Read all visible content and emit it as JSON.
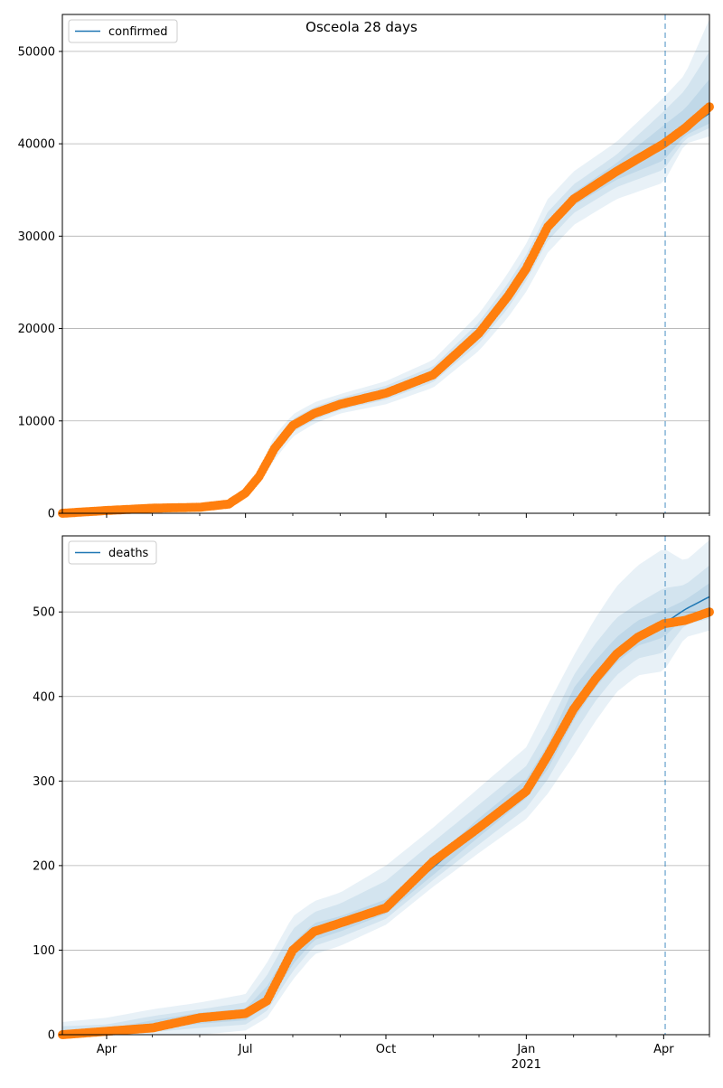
{
  "title": "Osceola 28 days",
  "colors": {
    "line": "#1f77b4",
    "points": "#ff7f0e",
    "band": "#1f77b4",
    "grid": "#b0b0b0",
    "vline": "#1f77b4"
  },
  "x_axis": {
    "major_ticks": [
      {
        "date": "2020-04-01",
        "label": "Apr",
        "sublabel": ""
      },
      {
        "date": "2020-07-01",
        "label": "Jul",
        "sublabel": ""
      },
      {
        "date": "2020-10-01",
        "label": "Oct",
        "sublabel": ""
      },
      {
        "date": "2021-01-01",
        "label": "Jan",
        "sublabel": "2021"
      },
      {
        "date": "2021-04-01",
        "label": "Apr",
        "sublabel": ""
      }
    ],
    "minor_ticks": [
      "2020-05-01",
      "2020-06-01",
      "2020-08-01",
      "2020-09-01",
      "2020-11-01",
      "2020-12-01",
      "2021-02-01",
      "2021-03-01",
      "2021-05-01"
    ],
    "range": [
      "2020-03-03",
      "2021-05-01"
    ]
  },
  "forecast_start": "2021-04-02",
  "chart_data": [
    {
      "type": "line",
      "legend": "confirmed",
      "legend_position": "upper left",
      "grid": "horizontal",
      "ylim": [
        0,
        54000
      ],
      "yticks": [
        0,
        10000,
        20000,
        30000,
        40000,
        50000
      ],
      "x": [
        "2020-03-03",
        "2020-04-01",
        "2020-05-01",
        "2020-06-01",
        "2020-06-20",
        "2020-07-01",
        "2020-07-10",
        "2020-07-20",
        "2020-08-01",
        "2020-08-15",
        "2020-09-01",
        "2020-10-01",
        "2020-11-01",
        "2020-12-01",
        "2020-12-20",
        "2021-01-01",
        "2021-01-15",
        "2021-02-01",
        "2021-03-01",
        "2021-04-01",
        "2021-04-15",
        "2021-05-01"
      ],
      "series": [
        {
          "name": "confirmed",
          "kind": "line",
          "values": [
            0,
            300,
            550,
            650,
            1000,
            2200,
            4000,
            7000,
            9500,
            10800,
            11800,
            13000,
            15000,
            19500,
            23500,
            26500,
            31000,
            34000,
            37000,
            40000,
            41500,
            43300
          ]
        },
        {
          "name": "observed",
          "kind": "points",
          "values": [
            0,
            300,
            550,
            650,
            1000,
            2200,
            4000,
            7000,
            9500,
            10800,
            11800,
            13000,
            15000,
            19500,
            23500,
            26500,
            31000,
            34000,
            37000,
            40000,
            41700,
            44000
          ]
        }
      ],
      "bands": [
        {
          "lower": [
            0,
            200,
            450,
            550,
            800,
            1700,
            3200,
            5800,
            8300,
            9700,
            10800,
            11800,
            13600,
            17600,
            21200,
            24000,
            28200,
            31200,
            34000,
            35800,
            40000,
            40800
          ],
          "upper": [
            0,
            400,
            650,
            750,
            1200,
            2800,
            4800,
            8400,
            10700,
            12000,
            12900,
            14300,
            16600,
            21600,
            26000,
            29200,
            34000,
            37000,
            40200,
            45000,
            47500,
            53500
          ]
        },
        {
          "lower": [
            0,
            240,
            480,
            580,
            870,
            1900,
            3500,
            6300,
            8800,
            10100,
            11200,
            12300,
            14200,
            18400,
            22200,
            25200,
            29500,
            32500,
            35300,
            37200,
            40500,
            41700
          ],
          "upper": [
            0,
            360,
            620,
            720,
            1130,
            2500,
            4500,
            7700,
            10200,
            11500,
            12500,
            13800,
            15900,
            20700,
            24900,
            28000,
            32600,
            35600,
            38800,
            43500,
            45800,
            50000
          ]
        },
        {
          "lower": [
            0,
            270,
            510,
            610,
            930,
            2050,
            3750,
            6650,
            9150,
            10450,
            11500,
            12650,
            14600,
            18950,
            22850,
            25900,
            30300,
            33300,
            36100,
            38200,
            40900,
            42200
          ],
          "upper": [
            0,
            330,
            590,
            690,
            1070,
            2350,
            4250,
            7350,
            9850,
            11150,
            12150,
            13350,
            15400,
            20050,
            24150,
            27100,
            31700,
            34700,
            37900,
            42000,
            43800,
            47000
          ]
        }
      ]
    },
    {
      "type": "line",
      "legend": "deaths",
      "legend_position": "upper left",
      "grid": "horizontal",
      "ylim": [
        0,
        590
      ],
      "yticks": [
        0,
        100,
        200,
        300,
        400,
        500
      ],
      "x": [
        "2020-03-03",
        "2020-04-01",
        "2020-05-01",
        "2020-06-01",
        "2020-07-01",
        "2020-07-15",
        "2020-08-01",
        "2020-08-15",
        "2020-09-01",
        "2020-10-01",
        "2020-11-01",
        "2020-12-01",
        "2021-01-01",
        "2021-01-15",
        "2021-02-01",
        "2021-02-15",
        "2021-03-01",
        "2021-03-15",
        "2021-04-01",
        "2021-04-15",
        "2021-05-01"
      ],
      "series": [
        {
          "name": "deaths",
          "kind": "line",
          "values": [
            0,
            3,
            12,
            20,
            25,
            45,
            95,
            122,
            130,
            150,
            198,
            245,
            290,
            328,
            392,
            425,
            455,
            475,
            486,
            503,
            518
          ]
        },
        {
          "name": "observed",
          "kind": "points",
          "values": [
            0,
            4,
            8,
            20,
            25,
            40,
            100,
            122,
            132,
            150,
            205,
            245,
            288,
            330,
            385,
            420,
            450,
            470,
            486,
            490,
            500
          ]
        }
      ],
      "bands": [
        {
          "lower": [
            0,
            0,
            0,
            0,
            5,
            20,
            65,
            95,
            105,
            130,
            175,
            215,
            255,
            285,
            330,
            370,
            405,
            425,
            430,
            470,
            478
          ],
          "upper": [
            15,
            20,
            30,
            38,
            48,
            85,
            140,
            158,
            168,
            200,
            245,
            292,
            340,
            390,
            448,
            492,
            530,
            555,
            575,
            560,
            585
          ]
        },
        {
          "lower": [
            0,
            0,
            3,
            8,
            12,
            28,
            75,
            105,
            115,
            137,
            183,
            225,
            268,
            302,
            355,
            394,
            425,
            445,
            452,
            485,
            492
          ],
          "upper": [
            10,
            12,
            22,
            30,
            38,
            70,
            125,
            145,
            155,
            182,
            228,
            272,
            318,
            362,
            425,
            462,
            493,
            510,
            528,
            532,
            555
          ]
        },
        {
          "lower": [
            0,
            1,
            6,
            13,
            17,
            35,
            83,
            112,
            122,
            143,
            189,
            234,
            280,
            314,
            372,
            410,
            440,
            460,
            470,
            494,
            505
          ],
          "upper": [
            5,
            7,
            17,
            26,
            31,
            57,
            108,
            132,
            140,
            160,
            207,
            256,
            302,
            343,
            410,
            442,
            470,
            490,
            502,
            514,
            534
          ]
        }
      ]
    }
  ]
}
